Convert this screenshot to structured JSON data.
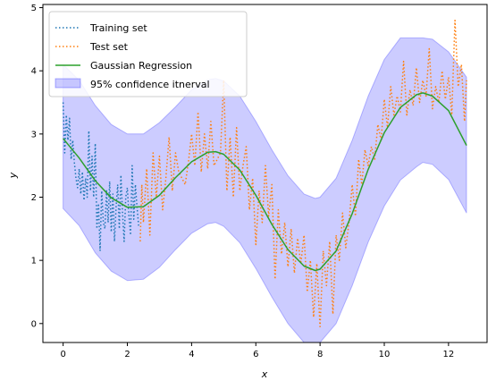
{
  "chart_data": {
    "type": "line",
    "title": "",
    "xlabel": "x",
    "ylabel": "y",
    "xlim": [
      -0.63,
      13.2
    ],
    "ylim": [
      -0.3,
      5.05
    ],
    "xticks": [
      0,
      2,
      4,
      6,
      8,
      10,
      12
    ],
    "yticks": [
      0,
      1,
      2,
      3,
      4,
      5
    ],
    "grid": false,
    "legend_position": "top-left",
    "series": [
      {
        "name": "Training set",
        "style": "dotted",
        "color": "#1f77b4",
        "x": [
          0.0,
          0.05,
          0.1,
          0.15,
          0.2,
          0.25,
          0.3,
          0.35,
          0.4,
          0.45,
          0.5,
          0.55,
          0.6,
          0.65,
          0.7,
          0.75,
          0.8,
          0.85,
          0.9,
          0.95,
          1.0,
          1.05,
          1.1,
          1.15,
          1.2,
          1.25,
          1.3,
          1.35,
          1.4,
          1.45,
          1.5,
          1.55,
          1.6,
          1.65,
          1.7,
          1.75,
          1.8,
          1.85,
          1.9,
          1.95,
          2.0,
          2.05,
          2.1,
          2.15,
          2.2,
          2.25,
          2.3,
          2.35
        ],
        "y": [
          3.5,
          2.7,
          3.3,
          2.9,
          3.25,
          2.6,
          2.9,
          2.55,
          2.3,
          2.15,
          2.45,
          2.05,
          2.4,
          1.95,
          2.3,
          2.0,
          3.05,
          2.1,
          2.65,
          2.0,
          2.85,
          1.5,
          1.9,
          1.15,
          2.1,
          1.6,
          1.5,
          2.1,
          1.6,
          2.25,
          1.45,
          2.05,
          1.3,
          1.85,
          2.2,
          1.5,
          2.35,
          1.75,
          1.3,
          2.0,
          2.15,
          1.7,
          1.4,
          2.5,
          1.65,
          2.2,
          1.85,
          1.55
        ]
      },
      {
        "name": "Test set",
        "style": "dotted",
        "color": "#ff7f0e",
        "x": [
          2.4,
          2.45,
          2.5,
          2.6,
          2.7,
          2.8,
          2.9,
          3.0,
          3.1,
          3.2,
          3.3,
          3.4,
          3.5,
          3.6,
          3.7,
          3.8,
          3.9,
          4.0,
          4.1,
          4.2,
          4.3,
          4.4,
          4.5,
          4.6,
          4.7,
          4.8,
          4.9,
          5.0,
          5.1,
          5.2,
          5.3,
          5.4,
          5.5,
          5.6,
          5.7,
          5.8,
          5.9,
          6.0,
          6.1,
          6.2,
          6.3,
          6.4,
          6.5,
          6.6,
          6.7,
          6.8,
          6.9,
          7.0,
          7.1,
          7.2,
          7.3,
          7.4,
          7.5,
          7.6,
          7.7,
          7.8,
          7.9,
          8.0,
          8.1,
          8.2,
          8.3,
          8.4,
          8.5,
          8.6,
          8.7,
          8.8,
          8.9,
          9.0,
          9.1,
          9.2,
          9.3,
          9.4,
          9.5,
          9.6,
          9.7,
          9.8,
          9.9,
          10.0,
          10.1,
          10.2,
          10.3,
          10.4,
          10.5,
          10.6,
          10.7,
          10.8,
          10.9,
          11.0,
          11.1,
          11.2,
          11.3,
          11.4,
          11.5,
          11.6,
          11.7,
          11.8,
          11.9,
          12.0,
          12.1,
          12.2,
          12.3,
          12.4,
          12.5,
          12.56
        ],
        "y": [
          1.3,
          2.2,
          1.6,
          2.45,
          1.4,
          2.7,
          2.0,
          2.65,
          1.8,
          2.3,
          2.95,
          2.1,
          2.7,
          2.4,
          2.3,
          2.2,
          2.55,
          3.0,
          2.5,
          3.35,
          2.4,
          3.0,
          2.45,
          3.2,
          2.5,
          2.6,
          2.7,
          3.85,
          2.1,
          2.95,
          2.0,
          3.1,
          2.1,
          2.5,
          2.8,
          1.8,
          2.3,
          1.25,
          2.1,
          1.6,
          2.5,
          1.7,
          2.2,
          0.7,
          1.8,
          1.1,
          1.6,
          0.9,
          1.5,
          0.8,
          1.35,
          0.95,
          1.4,
          0.5,
          1.0,
          0.1,
          0.95,
          -0.05,
          1.15,
          0.6,
          1.3,
          0.15,
          1.4,
          1.0,
          1.75,
          1.2,
          1.6,
          2.2,
          1.7,
          2.6,
          2.2,
          2.75,
          2.5,
          2.8,
          2.6,
          3.15,
          2.9,
          3.55,
          3.1,
          3.75,
          3.3,
          3.6,
          3.35,
          4.15,
          3.3,
          3.7,
          3.45,
          4.05,
          3.5,
          3.85,
          3.6,
          4.35,
          3.4,
          3.75,
          3.5,
          4.0,
          3.55,
          3.9,
          3.3,
          4.8,
          3.75,
          4.1,
          3.2,
          3.85
        ]
      },
      {
        "name": "Gaussian Regression",
        "style": "solid",
        "color": "#2ca02c",
        "x": [
          0.0,
          0.5,
          1.0,
          1.5,
          2.0,
          2.5,
          3.0,
          3.5,
          4.0,
          4.5,
          4.75,
          5.0,
          5.5,
          6.0,
          6.5,
          7.0,
          7.5,
          7.85,
          8.0,
          8.5,
          9.0,
          9.5,
          10.0,
          10.5,
          11.0,
          11.2,
          11.5,
          12.0,
          12.56
        ],
        "y": [
          2.93,
          2.62,
          2.26,
          1.99,
          1.84,
          1.85,
          2.03,
          2.31,
          2.56,
          2.71,
          2.72,
          2.68,
          2.43,
          2.03,
          1.57,
          1.17,
          0.91,
          0.84,
          0.86,
          1.15,
          1.74,
          2.44,
          3.02,
          3.42,
          3.62,
          3.65,
          3.6,
          3.37,
          2.82
        ]
      }
    ],
    "confidence_band": {
      "name": "95% confidence itnerval",
      "color": "#0000ff",
      "opacity": 0.2,
      "x": [
        0.0,
        0.5,
        1.0,
        1.5,
        2.0,
        2.5,
        3.0,
        3.5,
        4.0,
        4.5,
        4.75,
        5.0,
        5.5,
        6.0,
        6.5,
        7.0,
        7.5,
        7.85,
        8.0,
        8.5,
        9.0,
        9.5,
        10.0,
        10.5,
        11.0,
        11.2,
        11.5,
        12.0,
        12.56
      ],
      "upper": [
        4.1,
        3.85,
        3.45,
        3.15,
        3.0,
        3.0,
        3.18,
        3.43,
        3.7,
        3.86,
        3.88,
        3.84,
        3.6,
        3.2,
        2.75,
        2.34,
        2.05,
        1.98,
        2.0,
        2.3,
        2.9,
        3.6,
        4.18,
        4.52,
        4.52,
        4.52,
        4.5,
        4.3,
        3.9
      ],
      "lower": [
        1.82,
        1.55,
        1.12,
        0.83,
        0.68,
        0.7,
        0.89,
        1.17,
        1.43,
        1.58,
        1.6,
        1.54,
        1.28,
        0.87,
        0.42,
        0.0,
        -0.3,
        -0.3,
        -0.3,
        0.0,
        0.6,
        1.29,
        1.86,
        2.27,
        2.48,
        2.55,
        2.52,
        2.28,
        1.75
      ]
    }
  }
}
